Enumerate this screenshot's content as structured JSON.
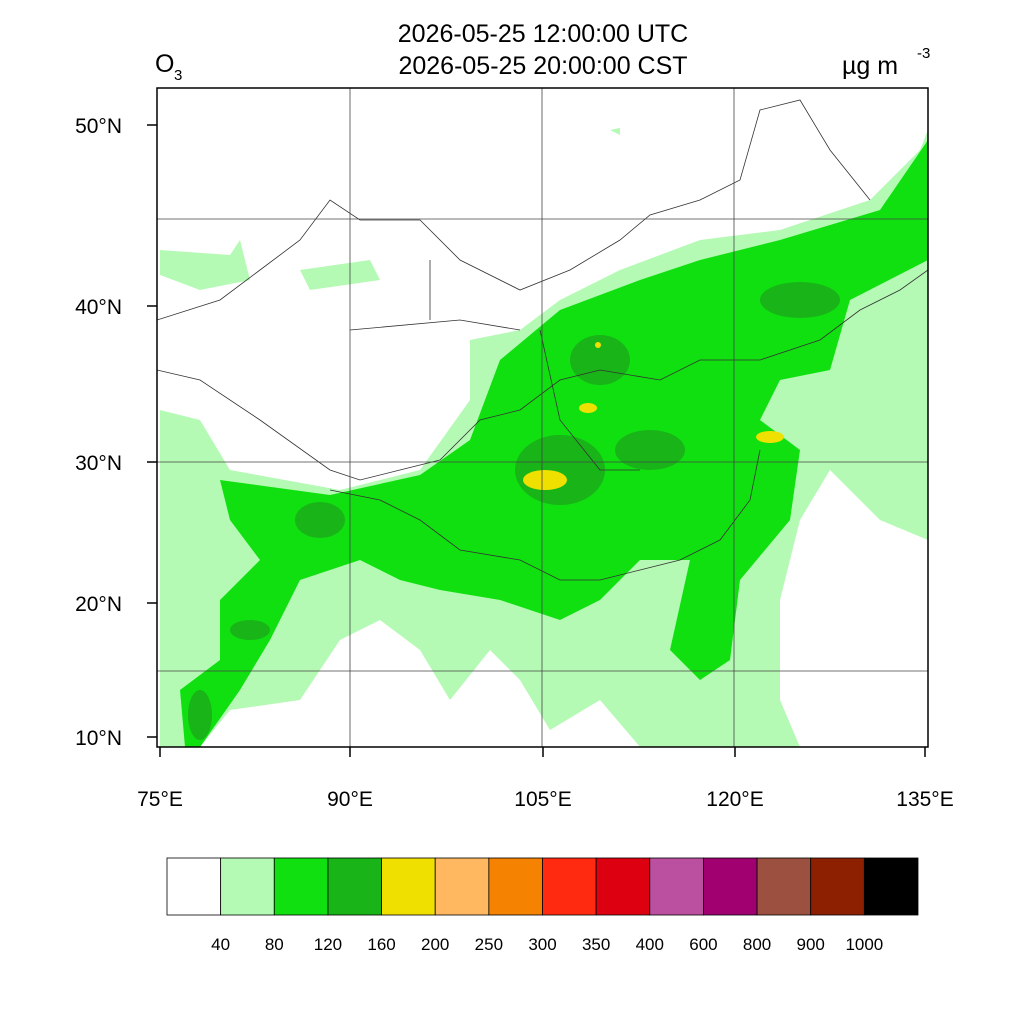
{
  "header": {
    "variable": "O",
    "variable_sub": "3",
    "title_lines": [
      "2026-05-25 12:00:00 UTC",
      "2026-05-25 20:00:00 CST"
    ],
    "unit": "µg m",
    "unit_sup": "-3"
  },
  "map": {
    "lat_labels": [
      "50°N",
      "40°N",
      "30°N",
      "20°N",
      "10°N"
    ],
    "lon_labels": [
      "75°E",
      "90°E",
      "105°E",
      "120°E",
      "135°E"
    ]
  },
  "colorbar": {
    "labels": [
      "40",
      "80",
      "120",
      "160",
      "200",
      "250",
      "300",
      "350",
      "400",
      "600",
      "800",
      "900",
      "1000"
    ],
    "colors": [
      "#ffffff",
      "#b4fab4",
      "#10e010",
      "#18b418",
      "#f0e000",
      "#ffb860",
      "#f58200",
      "#ff2a10",
      "#dc0010",
      "#bc50a0",
      "#a00070",
      "#9c5040",
      "#8c2000",
      "#000000"
    ]
  }
}
